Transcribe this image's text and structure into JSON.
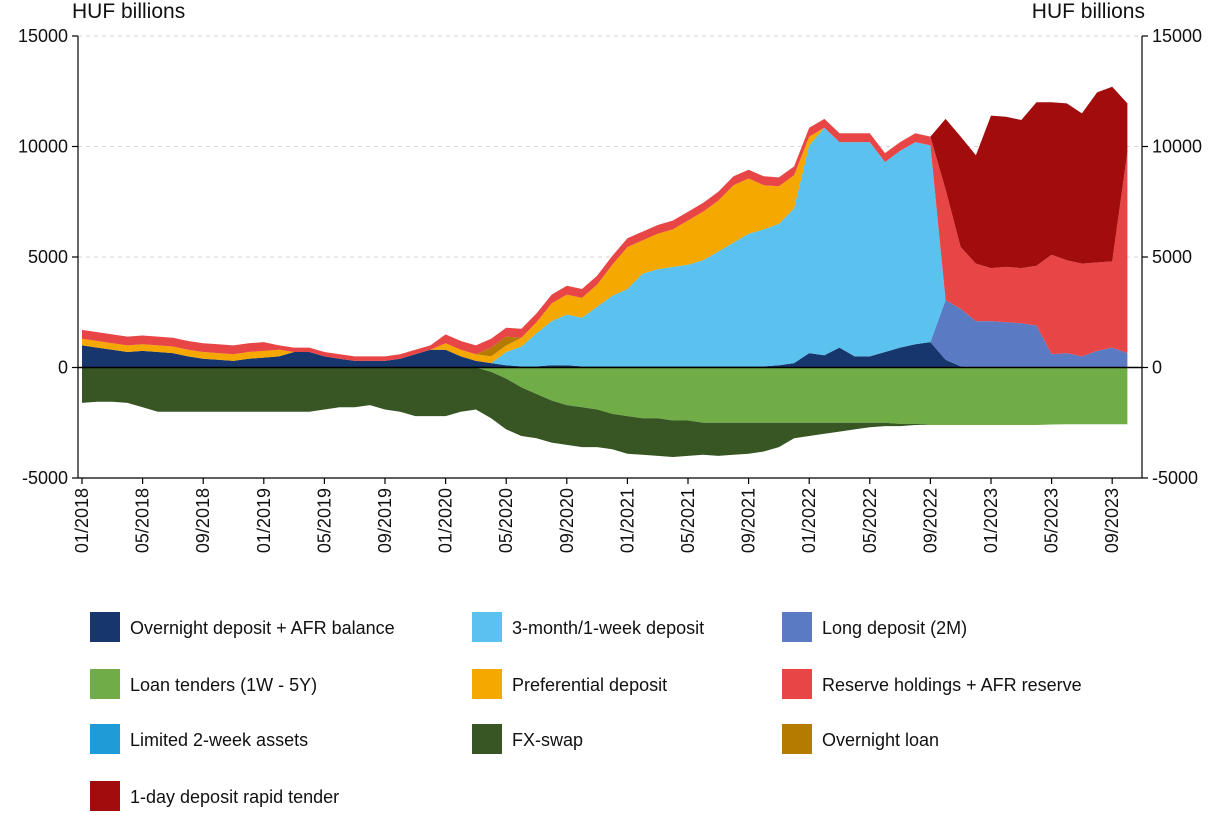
{
  "left_unit": "HUF billions",
  "right_unit": "HUF billions",
  "chart_data": {
    "type": "area",
    "x_tick_labels": [
      "01/2018",
      "05/2018",
      "09/2018",
      "01/2019",
      "05/2019",
      "09/2019",
      "01/2020",
      "05/2020",
      "09/2020",
      "01/2021",
      "05/2021",
      "09/2021",
      "01/2022",
      "05/2022",
      "09/2022",
      "01/2023",
      "05/2023",
      "09/2023"
    ],
    "x_range": [
      "2018-01",
      "2023-11"
    ],
    "y_ticks_left": [
      "15000",
      "10000",
      "5000",
      "0",
      "-5000"
    ],
    "y_ticks_right": [
      "15000",
      "10000",
      "5000",
      "0",
      "-5000"
    ],
    "y_tick_values": [
      15000,
      10000,
      5000,
      0,
      -5000
    ],
    "ylim": [
      -5000,
      15000
    ],
    "grid": "horizontal dashed",
    "legend_position": "bottom",
    "x": [
      "2018-01",
      "2018-02",
      "2018-03",
      "2018-04",
      "2018-05",
      "2018-06",
      "2018-07",
      "2018-08",
      "2018-09",
      "2018-10",
      "2018-11",
      "2018-12",
      "2019-01",
      "2019-02",
      "2019-03",
      "2019-04",
      "2019-05",
      "2019-06",
      "2019-07",
      "2019-08",
      "2019-09",
      "2019-10",
      "2019-11",
      "2019-12",
      "2020-01",
      "2020-02",
      "2020-03",
      "2020-04",
      "2020-05",
      "2020-06",
      "2020-07",
      "2020-08",
      "2020-09",
      "2020-10",
      "2020-11",
      "2020-12",
      "2021-01",
      "2021-02",
      "2021-03",
      "2021-04",
      "2021-05",
      "2021-06",
      "2021-07",
      "2021-08",
      "2021-09",
      "2021-10",
      "2021-11",
      "2021-12",
      "2022-01",
      "2022-02",
      "2022-03",
      "2022-04",
      "2022-05",
      "2022-06",
      "2022-07",
      "2022-08",
      "2022-09",
      "2022-10",
      "2022-11",
      "2022-12",
      "2023-01",
      "2023-02",
      "2023-03",
      "2023-04",
      "2023-05",
      "2023-06",
      "2023-07",
      "2023-08",
      "2023-09",
      "2023-10"
    ],
    "positive_series": [
      {
        "name": "Overnight deposit + AFR balance",
        "color": "#17366E",
        "values": [
          1000,
          900,
          800,
          700,
          750,
          700,
          650,
          500,
          400,
          350,
          300,
          400,
          450,
          500,
          700,
          700,
          500,
          400,
          300,
          300,
          300,
          400,
          600,
          800,
          800,
          500,
          300,
          200,
          100,
          50,
          50,
          100,
          100,
          50,
          50,
          50,
          50,
          50,
          50,
          50,
          50,
          50,
          50,
          50,
          50,
          50,
          100,
          200,
          650,
          550,
          900,
          500,
          500,
          700,
          900,
          1050,
          1150,
          350,
          50,
          0,
          0,
          0,
          0,
          0,
          0,
          0,
          0,
          0,
          0,
          0
        ]
      },
      {
        "name": "Long deposit (2M)",
        "color": "#5A7BC3",
        "values": [
          0,
          0,
          0,
          0,
          0,
          0,
          0,
          0,
          0,
          0,
          0,
          0,
          0,
          0,
          0,
          0,
          0,
          0,
          0,
          0,
          0,
          0,
          0,
          0,
          0,
          0,
          0,
          0,
          0,
          0,
          0,
          0,
          0,
          0,
          0,
          0,
          0,
          0,
          0,
          0,
          0,
          0,
          0,
          0,
          0,
          0,
          0,
          0,
          0,
          0,
          0,
          0,
          0,
          0,
          0,
          0,
          0,
          2700,
          2600,
          2100,
          2100,
          2050,
          2000,
          1900,
          600,
          650,
          500,
          750,
          900,
          650
        ]
      },
      {
        "name": "3-month/1-week deposit",
        "color": "#5BC1EE",
        "values": [
          0,
          0,
          0,
          0,
          0,
          0,
          0,
          0,
          0,
          0,
          0,
          0,
          0,
          0,
          0,
          0,
          0,
          0,
          0,
          0,
          0,
          0,
          0,
          0,
          0,
          0,
          0,
          0,
          600,
          900,
          1500,
          2000,
          2300,
          2200,
          2700,
          3200,
          3500,
          4200,
          4400,
          4500,
          4600,
          4800,
          5200,
          5600,
          6000,
          6200,
          6400,
          7000,
          9400,
          10300,
          9300,
          9700,
          9700,
          8600,
          8900,
          9150,
          8900,
          0,
          0,
          0,
          0,
          0,
          0,
          0,
          0,
          0,
          0,
          0,
          0,
          0
        ]
      },
      {
        "name": "Preferential deposit",
        "color": "#F5A800",
        "values": [
          300,
          300,
          300,
          300,
          300,
          300,
          300,
          300,
          300,
          300,
          300,
          300,
          300,
          300,
          0,
          0,
          0,
          0,
          0,
          0,
          0,
          0,
          0,
          0,
          300,
          300,
          300,
          300,
          300,
          400,
          500,
          800,
          900,
          900,
          1000,
          1400,
          1900,
          1500,
          1600,
          1700,
          2000,
          2200,
          2300,
          2600,
          2500,
          2000,
          1700,
          1500,
          400,
          0,
          0,
          0,
          0,
          0,
          0,
          0,
          0,
          0,
          0,
          0,
          0,
          0,
          0,
          0,
          0,
          0,
          0,
          0,
          0,
          0
        ]
      },
      {
        "name": "Limited 2-week assets",
        "color": "#1F9BD7",
        "values": [
          0,
          0,
          0,
          0,
          0,
          0,
          0,
          0,
          0,
          0,
          0,
          0,
          0,
          0,
          0,
          0,
          0,
          0,
          0,
          0,
          0,
          0,
          0,
          0,
          0,
          0,
          0,
          0,
          0,
          0,
          0,
          0,
          0,
          0,
          0,
          0,
          0,
          0,
          0,
          0,
          0,
          0,
          0,
          0,
          0,
          0,
          0,
          0,
          0,
          0,
          0,
          0,
          0,
          0,
          0,
          0,
          0,
          0,
          0,
          0,
          0,
          0,
          0,
          0,
          0,
          0,
          0,
          0,
          0,
          0
        ]
      },
      {
        "name": "Overnight loan",
        "color": "#B57B00",
        "values": [
          0,
          0,
          0,
          0,
          0,
          0,
          0,
          0,
          0,
          0,
          0,
          0,
          0,
          0,
          0,
          0,
          0,
          0,
          0,
          0,
          0,
          0,
          0,
          0,
          0,
          0,
          0,
          400,
          400,
          0,
          0,
          0,
          0,
          0,
          0,
          0,
          0,
          0,
          0,
          0,
          0,
          0,
          0,
          0,
          0,
          0,
          0,
          0,
          0,
          0,
          0,
          0,
          0,
          0,
          0,
          0,
          0,
          0,
          0,
          0,
          0,
          0,
          0,
          0,
          0,
          0,
          0,
          0,
          0,
          0
        ]
      },
      {
        "name": "Reserve holdings + AFR reserve",
        "color": "#E84646",
        "values": [
          400,
          400,
          400,
          400,
          400,
          400,
          400,
          400,
          400,
          400,
          400,
          400,
          400,
          200,
          200,
          200,
          200,
          200,
          200,
          200,
          200,
          200,
          200,
          200,
          400,
          400,
          400,
          400,
          400,
          400,
          400,
          400,
          400,
          400,
          400,
          400,
          400,
          400,
          400,
          400,
          400,
          400,
          400,
          400,
          400,
          400,
          400,
          400,
          400,
          400,
          400,
          400,
          400,
          400,
          400,
          400,
          400,
          5000,
          2800,
          2600,
          2400,
          2500,
          2500,
          2700,
          4500,
          4200,
          4200,
          4000,
          3900,
          9100
        ]
      },
      {
        "name": "1-day deposit rapid tender",
        "color": "#A30C0C",
        "values": [
          0,
          0,
          0,
          0,
          0,
          0,
          0,
          0,
          0,
          0,
          0,
          0,
          0,
          0,
          0,
          0,
          0,
          0,
          0,
          0,
          0,
          0,
          0,
          0,
          0,
          0,
          0,
          0,
          0,
          0,
          0,
          0,
          0,
          0,
          0,
          0,
          0,
          0,
          0,
          0,
          0,
          0,
          0,
          0,
          0,
          0,
          0,
          0,
          0,
          0,
          0,
          0,
          0,
          0,
          0,
          0,
          0,
          3200,
          5000,
          4900,
          6900,
          6800,
          6700,
          7400,
          6900,
          7100,
          6800,
          7700,
          7900,
          2200
        ]
      }
    ],
    "negative_series": [
      {
        "name": "Loan tenders (1W - 5Y)",
        "color": "#70AD47",
        "values": [
          0,
          0,
          0,
          0,
          0,
          0,
          0,
          0,
          0,
          0,
          0,
          0,
          0,
          0,
          0,
          0,
          0,
          0,
          0,
          0,
          0,
          0,
          0,
          0,
          0,
          0,
          0,
          200,
          500,
          900,
          1200,
          1500,
          1700,
          1800,
          1900,
          2100,
          2200,
          2300,
          2300,
          2400,
          2400,
          2500,
          2500,
          2500,
          2500,
          2500,
          2500,
          2500,
          2500,
          2500,
          2500,
          2500,
          2500,
          2500,
          2550,
          2550,
          2600,
          2600,
          2600,
          2600,
          2600,
          2600,
          2600,
          2600,
          2580,
          2570,
          2570,
          2570,
          2570,
          2570
        ]
      },
      {
        "name": "FX-swap",
        "color": "#375623",
        "values": [
          1600,
          1550,
          1550,
          1600,
          1800,
          2000,
          2000,
          2000,
          2000,
          2000,
          2000,
          2000,
          2000,
          2000,
          2000,
          2000,
          1900,
          1800,
          1800,
          1700,
          1900,
          2000,
          2200,
          2200,
          2200,
          2000,
          1900,
          2100,
          2300,
          2200,
          2000,
          1900,
          1800,
          1800,
          1700,
          1600,
          1700,
          1650,
          1700,
          1650,
          1600,
          1450,
          1500,
          1450,
          1400,
          1300,
          1100,
          700,
          600,
          500,
          400,
          300,
          200,
          150,
          100,
          50,
          0,
          0,
          0,
          0,
          0,
          0,
          0,
          0,
          0,
          0,
          0,
          0,
          0,
          0
        ]
      }
    ],
    "legend": [
      "Overnight deposit + AFR balance",
      "3-month/1-week deposit",
      "Long deposit (2M)",
      "Loan tenders (1W - 5Y)",
      "Preferential deposit",
      "Reserve holdings + AFR reserve",
      "Limited 2-week assets",
      "FX-swap",
      "Overnight loan",
      "1-day deposit rapid tender"
    ]
  }
}
